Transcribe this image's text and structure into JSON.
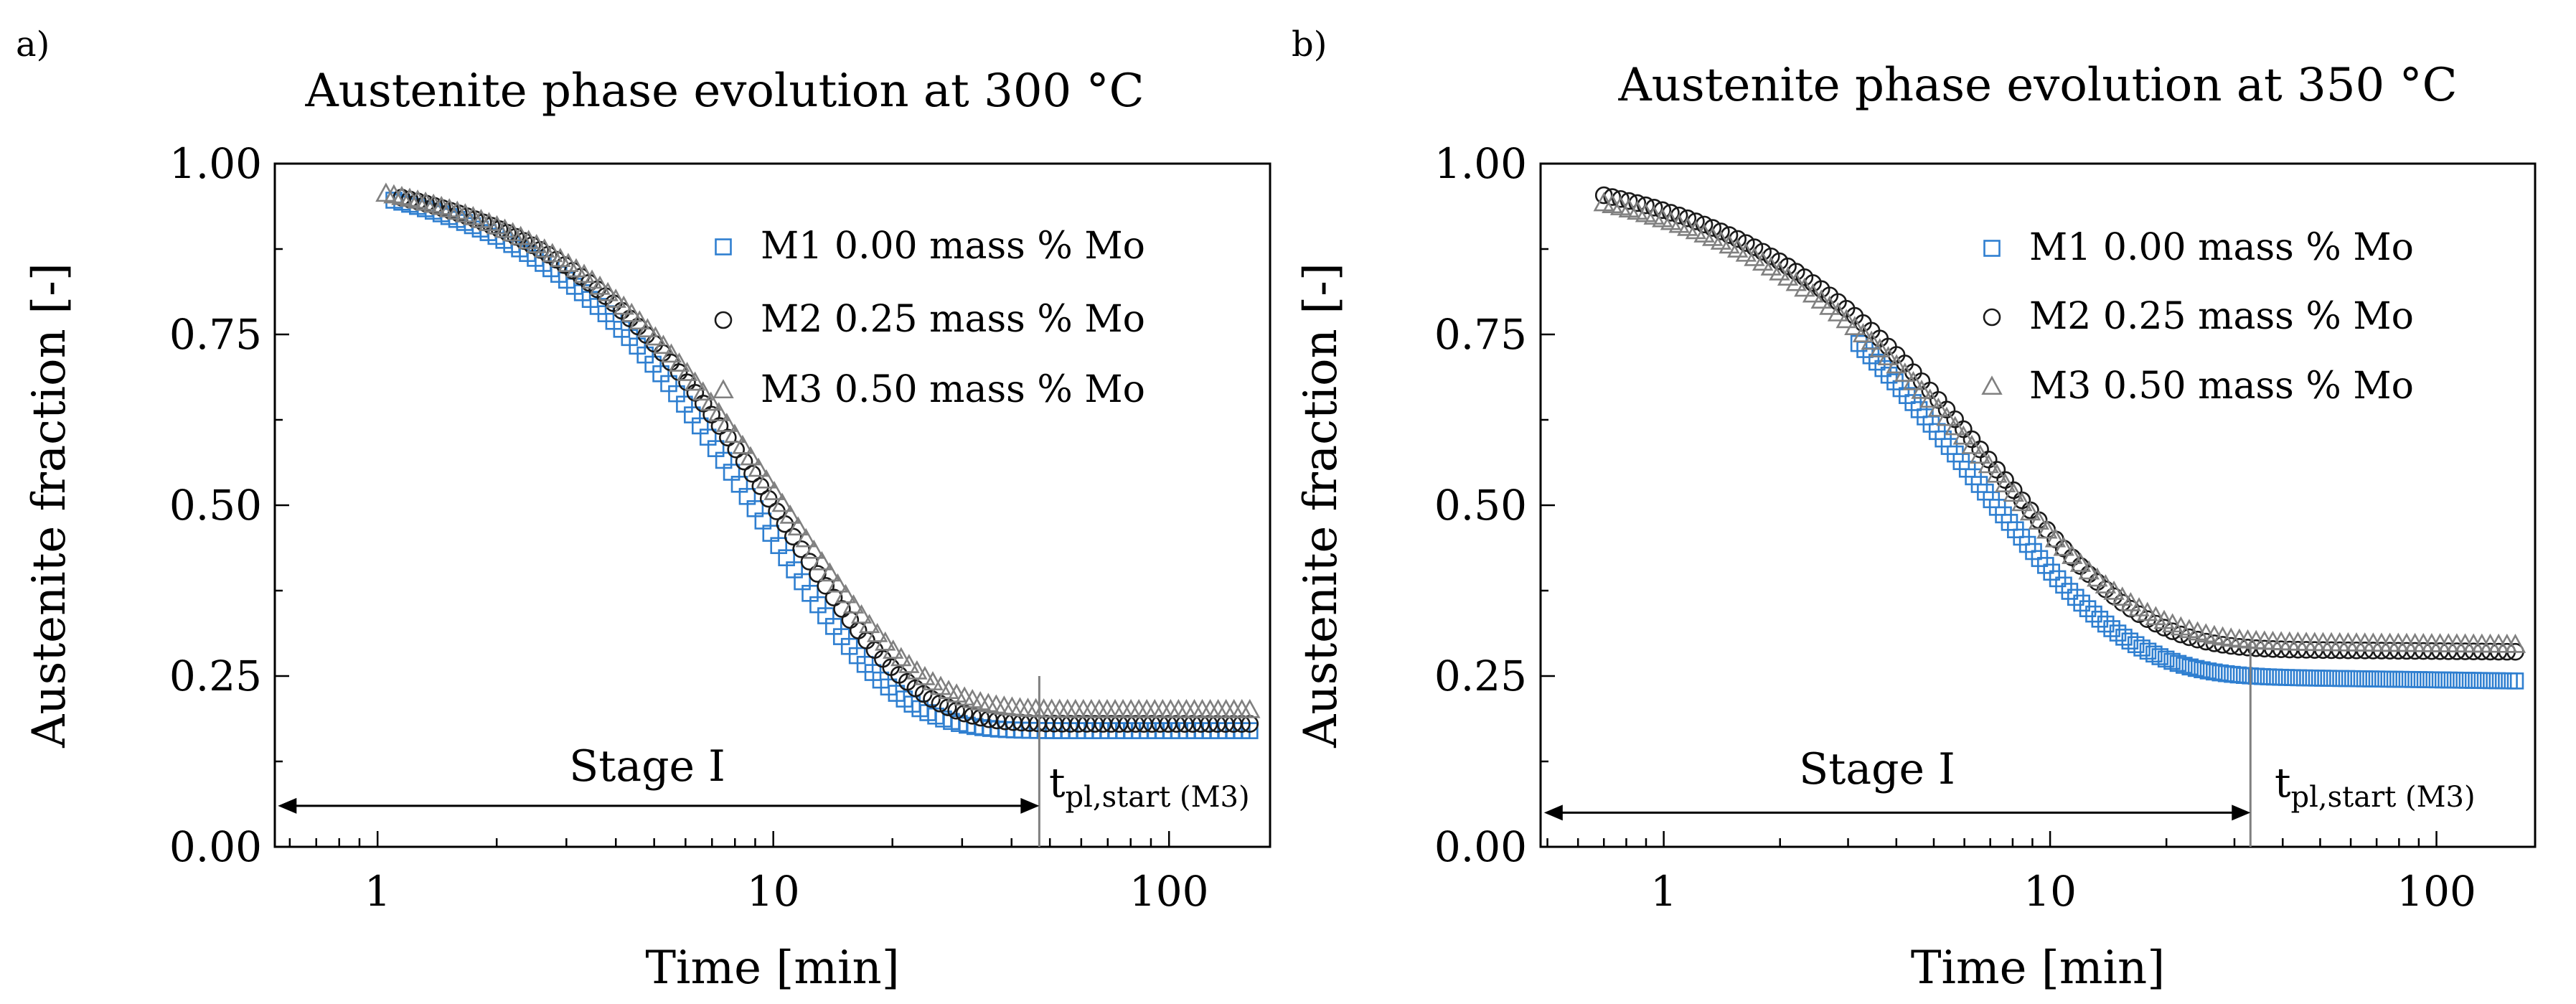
{
  "chart_data": [
    {
      "panel_label": "a)",
      "type": "scatter",
      "title": "Austenite phase evolution at 300 °C",
      "xlabel": "Time [min]",
      "ylabel": "Austenite fraction [-]",
      "xscale": "log",
      "xlim": [
        0.55,
        180
      ],
      "ylim": [
        0,
        1
      ],
      "xticks": [
        1,
        10,
        100
      ],
      "xtick_labels": [
        "1",
        "10",
        "100"
      ],
      "yticks": [
        0,
        0.25,
        0.5,
        0.75,
        1
      ],
      "ytick_labels": [
        "0.00",
        "0.25",
        "0.50",
        "0.75",
        "1.00"
      ],
      "legend_position": "top-right",
      "series": [
        {
          "name": "M1 0.00 mass % Mo",
          "marker": "square",
          "color": "#2f7fd0",
          "curve": {
            "t_start": 1.1,
            "t_end": 160,
            "n": 110,
            "a0": 0.995,
            "a_inf": 0.17,
            "tau": 9.5,
            "n_exp": 1.3
          }
        },
        {
          "name": "M2 0.25 mass % Mo",
          "marker": "circle",
          "color": "#1a1a1a",
          "curve": {
            "t_start": 1.15,
            "t_end": 160,
            "n": 105,
            "a0": 0.995,
            "a_inf": 0.18,
            "tau": 10.5,
            "n_exp": 1.3
          }
        },
        {
          "name": "M3 0.50 mass % Mo",
          "marker": "triangle",
          "color": "#808080",
          "curve": {
            "t_start": 1.05,
            "t_end": 160,
            "n": 110,
            "a0": 0.995,
            "a_inf": 0.2,
            "tau": 10.8,
            "n_exp": 1.28
          }
        }
      ],
      "annotation": {
        "stage_label": "Stage I",
        "arrow_from_x": 0.56,
        "arrow_to_x": 47,
        "arrow_y": 0.06,
        "vline_x": 47,
        "vline_y_top": 0.25,
        "tpl_main": "t",
        "tpl_sub": "pl,start (M3)"
      }
    },
    {
      "panel_label": "b)",
      "type": "scatter",
      "title": "Austenite phase evolution at 350 °C",
      "xlabel": "Time [min]",
      "ylabel": "Austenite fraction [-]",
      "xscale": "log",
      "xlim": [
        0.48,
        180
      ],
      "ylim": [
        0,
        1
      ],
      "xticks": [
        1,
        10,
        100
      ],
      "xtick_labels": [
        "1",
        "10",
        "100"
      ],
      "yticks": [
        0,
        0.25,
        0.5,
        0.75,
        1
      ],
      "ytick_labels": [
        "0.00",
        "0.25",
        "0.50",
        "0.75",
        "1.00"
      ],
      "legend_position": "top-right",
      "series": [
        {
          "name": "M1 0.00 mass % Mo",
          "marker": "square",
          "color": "#2f7fd0",
          "curve": {
            "t_start": 3.2,
            "t_end": 160,
            "n": 110,
            "a0": 1.02,
            "a_inf": 0.25,
            "tau": 6.5,
            "n_exp": 1.1,
            "decay": 0.008
          }
        },
        {
          "name": "M2 0.25 mass % Mo",
          "marker": "circle",
          "color": "#1a1a1a",
          "curve": {
            "t_start": 0.7,
            "t_end": 160,
            "n": 110,
            "a0": 1.0,
            "a_inf": 0.29,
            "tau": 7.3,
            "n_exp": 1.15,
            "decay": 0.005
          }
        },
        {
          "name": "M3 0.50 mass % Mo",
          "marker": "triangle",
          "color": "#808080",
          "curve": {
            "t_start": 0.7,
            "t_end": 160,
            "n": 110,
            "a0": 0.995,
            "a_inf": 0.3,
            "tau": 7.0,
            "n_exp": 1.1,
            "decay": 0.005
          }
        }
      ],
      "annotation": {
        "stage_label": "Stage I",
        "arrow_from_x": 0.49,
        "arrow_to_x": 33,
        "arrow_y": 0.05,
        "vline_x": 33,
        "vline_y_top": 0.3,
        "tpl_main": "t",
        "tpl_sub": "pl,start (M3)"
      }
    }
  ]
}
